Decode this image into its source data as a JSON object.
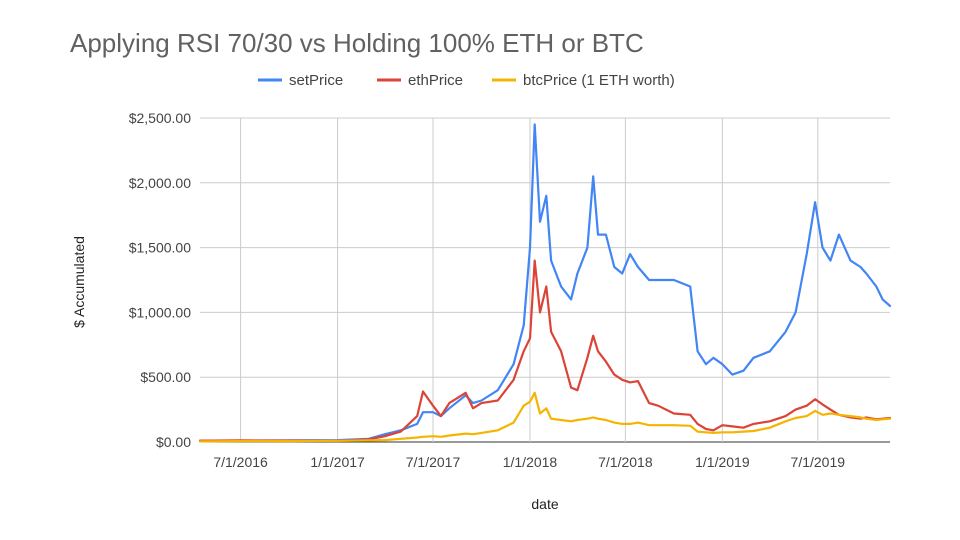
{
  "chart_data": {
    "type": "line",
    "title": "Applying RSI 70/30 vs Holding 100% ETH or BTC",
    "xlabel": "date",
    "ylabel": "$ Accumulated",
    "x_range": [
      "2016-04-15",
      "2019-11-15"
    ],
    "ylim": [
      0,
      2500
    ],
    "y_ticks": [
      0,
      500,
      1000,
      1500,
      2000,
      2500
    ],
    "y_tick_labels": [
      "$0.00",
      "$500.00",
      "$1,000.00",
      "$1,500.00",
      "$2,000.00",
      "$2,500.00"
    ],
    "x_ticks": [
      "2016-07-01",
      "2017-01-01",
      "2017-07-01",
      "2018-01-01",
      "2018-07-01",
      "2019-01-01",
      "2019-07-01"
    ],
    "x_tick_labels": [
      "7/1/2016",
      "1/1/2017",
      "7/1/2017",
      "1/1/2018",
      "7/1/2018",
      "1/1/2019",
      "7/1/2019"
    ],
    "grid": true,
    "legend_position": "top",
    "series": [
      {
        "name": "setPrice",
        "color": "#4285F4",
        "x": [
          "2016-04-15",
          "2016-07-01",
          "2016-10-01",
          "2017-01-01",
          "2017-03-01",
          "2017-04-01",
          "2017-05-01",
          "2017-06-01",
          "2017-06-12",
          "2017-07-01",
          "2017-07-16",
          "2017-08-01",
          "2017-09-01",
          "2017-09-15",
          "2017-10-01",
          "2017-11-01",
          "2017-12-01",
          "2017-12-20",
          "2018-01-01",
          "2018-01-10",
          "2018-01-20",
          "2018-02-01",
          "2018-02-10",
          "2018-03-01",
          "2018-03-20",
          "2018-04-01",
          "2018-04-20",
          "2018-05-01",
          "2018-05-10",
          "2018-05-25",
          "2018-06-10",
          "2018-06-25",
          "2018-07-10",
          "2018-07-25",
          "2018-08-15",
          "2018-09-01",
          "2018-10-01",
          "2018-11-01",
          "2018-11-15",
          "2018-12-01",
          "2018-12-15",
          "2019-01-01",
          "2019-01-20",
          "2019-02-10",
          "2019-03-01",
          "2019-04-01",
          "2019-05-01",
          "2019-05-20",
          "2019-06-10",
          "2019-06-26",
          "2019-07-10",
          "2019-07-25",
          "2019-08-10",
          "2019-09-01",
          "2019-09-20",
          "2019-10-01",
          "2019-10-20",
          "2019-11-01",
          "2019-11-15"
        ],
        "values": [
          10,
          10,
          12,
          15,
          25,
          60,
          90,
          140,
          230,
          230,
          200,
          260,
          360,
          300,
          320,
          400,
          600,
          900,
          1500,
          2450,
          1700,
          1900,
          1400,
          1200,
          1100,
          1300,
          1500,
          2050,
          1600,
          1600,
          1350,
          1300,
          1450,
          1350,
          1250,
          1250,
          1250,
          1200,
          700,
          600,
          650,
          600,
          520,
          550,
          650,
          700,
          850,
          1000,
          1450,
          1850,
          1500,
          1400,
          1600,
          1400,
          1350,
          1300,
          1200,
          1100,
          1050
        ]
      },
      {
        "name": "ethPrice",
        "color": "#DB4437",
        "x": [
          "2016-04-15",
          "2016-07-01",
          "2016-10-01",
          "2017-01-01",
          "2017-03-01",
          "2017-04-01",
          "2017-05-01",
          "2017-06-01",
          "2017-06-12",
          "2017-07-01",
          "2017-07-16",
          "2017-08-01",
          "2017-09-01",
          "2017-09-15",
          "2017-10-01",
          "2017-11-01",
          "2017-12-01",
          "2017-12-20",
          "2018-01-01",
          "2018-01-10",
          "2018-01-20",
          "2018-02-01",
          "2018-02-10",
          "2018-03-01",
          "2018-03-20",
          "2018-04-01",
          "2018-04-20",
          "2018-05-01",
          "2018-05-10",
          "2018-05-25",
          "2018-06-10",
          "2018-06-25",
          "2018-07-10",
          "2018-07-25",
          "2018-08-15",
          "2018-09-01",
          "2018-10-01",
          "2018-11-01",
          "2018-11-15",
          "2018-12-01",
          "2018-12-15",
          "2019-01-01",
          "2019-01-20",
          "2019-02-10",
          "2019-03-01",
          "2019-04-01",
          "2019-05-01",
          "2019-05-20",
          "2019-06-10",
          "2019-06-26",
          "2019-07-10",
          "2019-07-25",
          "2019-08-10",
          "2019-09-01",
          "2019-09-20",
          "2019-10-01",
          "2019-10-20",
          "2019-11-01",
          "2019-11-15"
        ],
        "values": [
          10,
          12,
          11,
          8,
          20,
          45,
          80,
          200,
          390,
          280,
          200,
          300,
          380,
          260,
          300,
          320,
          480,
          700,
          800,
          1400,
          1000,
          1200,
          850,
          700,
          420,
          400,
          650,
          820,
          700,
          620,
          520,
          480,
          460,
          470,
          300,
          280,
          220,
          210,
          140,
          100,
          90,
          130,
          120,
          110,
          140,
          160,
          200,
          250,
          280,
          330,
          290,
          250,
          210,
          190,
          180,
          190,
          175,
          180,
          185
        ]
      },
      {
        "name": "btcPrice (1 ETH worth)",
        "color": "#F4B400",
        "x": [
          "2016-04-15",
          "2016-07-01",
          "2016-10-01",
          "2017-01-01",
          "2017-03-01",
          "2017-04-01",
          "2017-05-01",
          "2017-06-01",
          "2017-06-12",
          "2017-07-01",
          "2017-07-16",
          "2017-08-01",
          "2017-09-01",
          "2017-09-15",
          "2017-10-01",
          "2017-11-01",
          "2017-12-01",
          "2017-12-20",
          "2018-01-01",
          "2018-01-10",
          "2018-01-20",
          "2018-02-01",
          "2018-02-10",
          "2018-03-01",
          "2018-03-20",
          "2018-04-01",
          "2018-04-20",
          "2018-05-01",
          "2018-05-10",
          "2018-05-25",
          "2018-06-10",
          "2018-06-25",
          "2018-07-10",
          "2018-07-25",
          "2018-08-15",
          "2018-09-01",
          "2018-10-01",
          "2018-11-01",
          "2018-11-15",
          "2018-12-01",
          "2018-12-15",
          "2019-01-01",
          "2019-01-20",
          "2019-02-10",
          "2019-03-01",
          "2019-04-01",
          "2019-05-01",
          "2019-05-20",
          "2019-06-10",
          "2019-06-26",
          "2019-07-10",
          "2019-07-25",
          "2019-08-10",
          "2019-09-01",
          "2019-09-20",
          "2019-10-01",
          "2019-10-20",
          "2019-11-01",
          "2019-11-15"
        ],
        "values": [
          5,
          7,
          7,
          9,
          12,
          15,
          25,
          35,
          40,
          45,
          40,
          50,
          65,
          60,
          70,
          90,
          150,
          280,
          310,
          380,
          220,
          260,
          180,
          170,
          160,
          170,
          180,
          190,
          180,
          170,
          150,
          140,
          140,
          150,
          130,
          130,
          130,
          125,
          80,
          75,
          70,
          75,
          75,
          80,
          85,
          110,
          160,
          185,
          200,
          240,
          210,
          220,
          210,
          200,
          190,
          180,
          170,
          175,
          180
        ]
      }
    ]
  }
}
